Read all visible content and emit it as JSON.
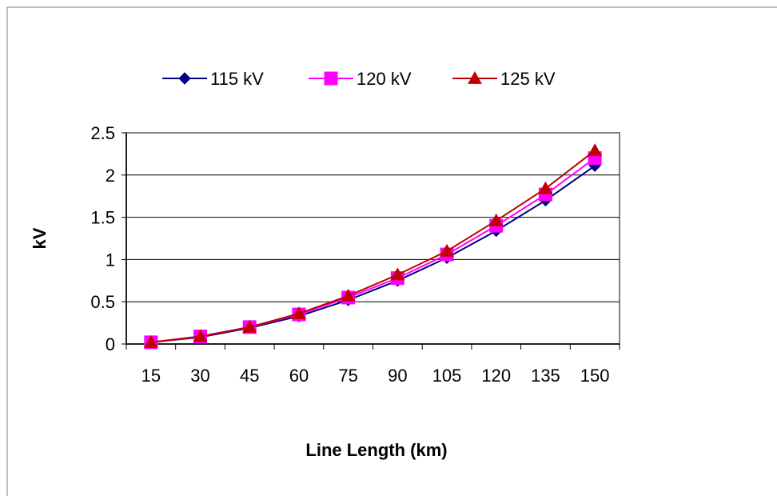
{
  "chart_data": {
    "type": "line",
    "title": "",
    "xlabel": "Line Length (km)",
    "ylabel": "kV",
    "categories": [
      "15",
      "30",
      "45",
      "60",
      "75",
      "90",
      "105",
      "120",
      "135",
      "150"
    ],
    "y_ticks": [
      "0",
      "0.5",
      "1",
      "1.5",
      "2",
      "2.5"
    ],
    "ylim": [
      0,
      2.5
    ],
    "grid": "horizontal",
    "legend_position": "top",
    "series": [
      {
        "name": "115 kV",
        "color": "#000080",
        "marker": "diamond",
        "values": [
          0.02,
          0.08,
          0.19,
          0.33,
          0.52,
          0.75,
          1.02,
          1.34,
          1.7,
          2.11
        ]
      },
      {
        "name": "120 kV",
        "color": "#ff00ff",
        "marker": "square",
        "values": [
          0.02,
          0.09,
          0.2,
          0.35,
          0.55,
          0.78,
          1.06,
          1.4,
          1.77,
          2.2
        ]
      },
      {
        "name": "125 kV",
        "color": "#c00000",
        "marker": "triangle",
        "values": [
          0.02,
          0.09,
          0.2,
          0.36,
          0.57,
          0.82,
          1.1,
          1.46,
          1.84,
          2.29
        ]
      }
    ]
  }
}
